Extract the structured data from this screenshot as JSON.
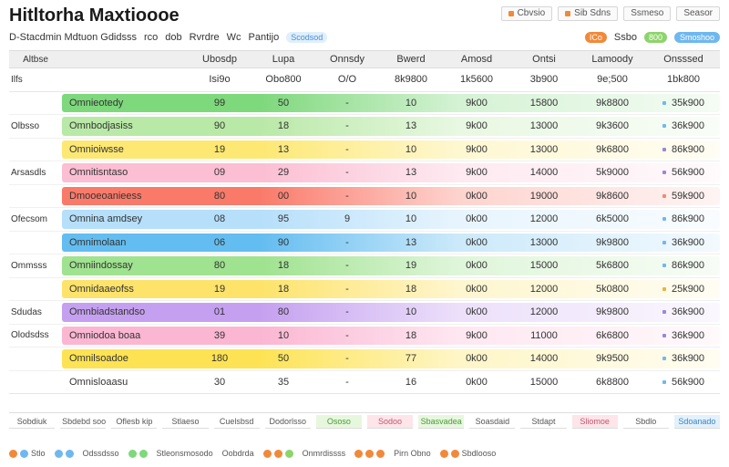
{
  "app": {
    "title": "Hitltorha Maxtioooe"
  },
  "top_actions": [
    {
      "label": "Cbvsio",
      "accent": true
    },
    {
      "label": "Sib Sdns",
      "accent": true
    },
    {
      "label": "Ssmeso",
      "accent": false
    },
    {
      "label": "Seasor",
      "accent": false
    }
  ],
  "toolbar": {
    "left_items": [
      "D-Stacdmin Mdtuon Gdidsss",
      "rco",
      "dob",
      "Rvrdre",
      "Wc",
      "Pantijo"
    ],
    "pill": "Scodsod",
    "right": {
      "tag_orange": "ICo",
      "label": "Ssbo",
      "tag_green": "800",
      "tag_blue": "Smoshoo"
    }
  },
  "header": {
    "columns": [
      "Altbse",
      "",
      "Ubosdp",
      "Lupa",
      "Onnsdy",
      "Bwerd",
      "Amosd",
      "Ontsi",
      "Lamoody",
      "Onsssed"
    ]
  },
  "summary_row": {
    "label": "Ilfs",
    "first": "",
    "values": [
      "Isi9o",
      "Obo800",
      "O/O",
      "8k9800",
      "1k5600",
      "3b900",
      "9e;500",
      "1bk800"
    ]
  },
  "rows": [
    {
      "group": "",
      "label": "Omnieotedy",
      "values": [
        "99",
        "50",
        "-",
        "10",
        "9k00",
        "15800",
        "9k8800",
        "35k900"
      ],
      "band": "#7ed87c",
      "dot": "#6fb8ef"
    },
    {
      "group": "Olbsso",
      "label": "Omnbodjasiss",
      "values": [
        "90",
        "18",
        "-",
        "13",
        "9k00",
        "13000",
        "9k3600",
        "36k900"
      ],
      "band": "#b9e9a6",
      "dot": "#6fb8ef"
    },
    {
      "group": "",
      "label": "Omnioiwsse",
      "values": [
        "19",
        "13",
        "-",
        "10",
        "9k00",
        "13000",
        "9k6800",
        "86k900"
      ],
      "band": "#fde873",
      "dot": "#9b86d8"
    },
    {
      "group": "Arsasdls",
      "label": "Omnitisntaso",
      "values": [
        "09",
        "29",
        "-",
        "13",
        "9k00",
        "14000",
        "5k9000",
        "56k900"
      ],
      "band": "#fbbed3",
      "dot": "#9b86d8"
    },
    {
      "group": "",
      "label": "Dmooeoanieess",
      "values": [
        "80",
        "00",
        "-",
        "10",
        "0k00",
        "19000",
        "9k8600",
        "59k900"
      ],
      "band": "#fa7a6a",
      "dot": "#f08a74"
    },
    {
      "group": "Ofecsom",
      "label": "Omnina amdsey",
      "values": [
        "08",
        "95",
        "9",
        "10",
        "0k00",
        "12000",
        "6k5000",
        "86k900"
      ],
      "band": "#b6dffa",
      "dot": "#6fb8ef"
    },
    {
      "group": "",
      "label": "Omnimolaan",
      "values": [
        "06",
        "90",
        "-",
        "13",
        "0k00",
        "13000",
        "9k9800",
        "36k900"
      ],
      "band": "#63bdf0",
      "dot": "#6fb8ef"
    },
    {
      "group": "Ommsss",
      "label": "Omniindossay",
      "values": [
        "80",
        "18",
        "-",
        "19",
        "0k00",
        "15000",
        "5k6800",
        "86k900"
      ],
      "band": "#9fe28f",
      "dot": "#6fb8ef"
    },
    {
      "group": "",
      "label": "Omnidaaeofss",
      "values": [
        "19",
        "18",
        "-",
        "18",
        "0k00",
        "12000",
        "5k0800",
        "25k900"
      ],
      "band": "#fde36a",
      "dot": "#f1b13a"
    },
    {
      "group": "Sdudas",
      "label": "Omnbiadstandso",
      "values": [
        "01",
        "80",
        "-",
        "10",
        "0k00",
        "12000",
        "9k9800",
        "36k900"
      ],
      "band": "#c5a0f0",
      "dot": "#9b86d8"
    },
    {
      "group": "Olodsdss",
      "label": "Omniodoa boaa",
      "values": [
        "39",
        "10",
        "-",
        "18",
        "9k00",
        "11000",
        "6k6800",
        "36k900"
      ],
      "band": "#fbb6d2",
      "dot": "#9b86d8"
    },
    {
      "group": "",
      "label": "Omnilsoadoe",
      "values": [
        "180",
        "50",
        "-",
        "77",
        "0k00",
        "14000",
        "9k9500",
        "36k900"
      ],
      "band": "#fde354",
      "dot": "#6fb8ef"
    },
    {
      "group": "",
      "label": "Omnisloaasu",
      "values": [
        "30",
        "35",
        "-",
        "16",
        "0k00",
        "15000",
        "6k8800",
        "56k900"
      ],
      "band": "",
      "dot": "#6fb8ef"
    }
  ],
  "footer_bar": [
    {
      "label": "Sobdiuk",
      "style": ""
    },
    {
      "label": "Sbdebd soo",
      "style": ""
    },
    {
      "label": "Oflesb kip",
      "style": ""
    },
    {
      "label": "Stlaeso",
      "style": ""
    },
    {
      "label": "Cuelsbsd",
      "style": ""
    },
    {
      "label": "Dodorlsso",
      "style": ""
    },
    {
      "label": "Ososo",
      "style": "gr"
    },
    {
      "label": "Sodoo",
      "style": "pk"
    },
    {
      "label": "Sbasvadea",
      "style": "gr"
    },
    {
      "label": "Soasdaid",
      "style": ""
    },
    {
      "label": "Stdapt",
      "style": ""
    },
    {
      "label": "Sliomoe",
      "style": "pk"
    },
    {
      "label": "Sbdlo",
      "style": ""
    },
    {
      "label": "Sdoanado",
      "style": "bl"
    }
  ],
  "footer_legend": [
    {
      "label": "Stlo",
      "dots": [
        "#f1893a",
        "#6fb8ef"
      ]
    },
    {
      "label": "",
      "dots": [
        "#6fb8ef",
        "#6fb8ef"
      ]
    },
    {
      "label": "Odssdsso",
      "dots": []
    },
    {
      "label": "",
      "dots": [
        "#7ed87c",
        "#7ed87c"
      ]
    },
    {
      "label": "Stleonsmosodo",
      "dots": []
    },
    {
      "label": "Oobdrda",
      "dots": []
    },
    {
      "label": "",
      "dots": [
        "#f1893a",
        "#f1893a",
        "#8dd46b"
      ]
    },
    {
      "label": "Onmrdissss",
      "dots": []
    },
    {
      "label": "",
      "dots": [
        "#f1893a",
        "#f1893a",
        "#f1893a"
      ]
    },
    {
      "label": "Pirn Obno",
      "dots": []
    },
    {
      "label": "Sbdlooso",
      "dots": [
        "#f1893a",
        "#f1893a"
      ]
    }
  ]
}
